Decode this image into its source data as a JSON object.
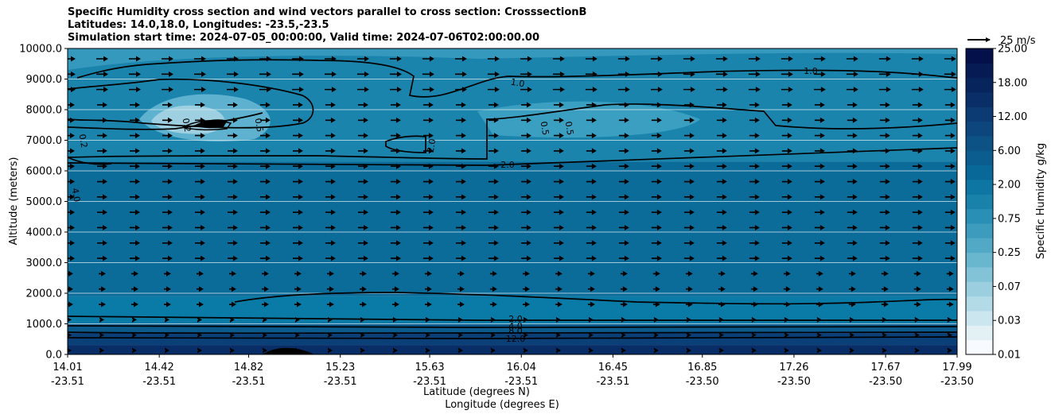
{
  "chart_data": {
    "type": "contourf",
    "title_lines": [
      "Specific Humidity cross section and wind vectors parallel to cross section: CrosssectionB",
      "Latitudes: 14.0,18.0, Longitudes: -23.5,-23.5",
      "Simulation start time: 2024-07-05_00:00:00, Valid time: 2024-07-06T02:00:00.00"
    ],
    "xlabel": "Latitude (degrees N)",
    "xlabel2": "Longitude (degrees E)",
    "ylabel": "Altitude (meters)",
    "x_ticks": [
      {
        "lat": "14.01",
        "lon": "-23.51"
      },
      {
        "lat": "14.42",
        "lon": "-23.51"
      },
      {
        "lat": "14.82",
        "lon": "-23.51"
      },
      {
        "lat": "15.23",
        "lon": "-23.51"
      },
      {
        "lat": "15.63",
        "lon": "-23.51"
      },
      {
        "lat": "16.04",
        "lon": "-23.51"
      },
      {
        "lat": "16.45",
        "lon": "-23.51"
      },
      {
        "lat": "16.85",
        "lon": "-23.50"
      },
      {
        "lat": "17.26",
        "lon": "-23.50"
      },
      {
        "lat": "17.67",
        "lon": "-23.50"
      },
      {
        "lat": "17.99",
        "lon": "-23.50"
      }
    ],
    "y_ticks": [
      "0.0",
      "1000.0",
      "2000.0",
      "3000.0",
      "4000.0",
      "5000.0",
      "6000.0",
      "7000.0",
      "8000.0",
      "9000.0",
      "10000.0"
    ],
    "ylim": [
      0,
      10000
    ],
    "xlim": [
      14.01,
      17.99
    ],
    "colorbar": {
      "label": "Specific Humidity g/kg",
      "ticks": [
        "25.00",
        "18.00",
        "12.00",
        "6.00",
        "2.00",
        "0.75",
        "0.25",
        "0.07",
        "0.03",
        "0.01"
      ],
      "colors": [
        "#f7fbff",
        "#e3f1f4",
        "#cbe6ee",
        "#b3dbe7",
        "#9bcfe0",
        "#82c3d8",
        "#69b6cf",
        "#51a9c6",
        "#3d9cbd",
        "#2a8fb4",
        "#1982ab",
        "#0d76a2",
        "#086998",
        "#0a5d8e",
        "#0c5285",
        "#0d467c",
        "#0c3a72",
        "#0a2f68",
        "#08245d",
        "#061a53",
        "#041049"
      ]
    },
    "quiver_key": {
      "label": "25 m/s"
    },
    "contour_labels": [
      "1.0",
      "1.0",
      "2.0",
      "2.0",
      "2.0",
      "4.0",
      "8.0",
      "12.0",
      "0.5",
      "0.5",
      "0.5",
      "0.2",
      "0.2",
      "4.0"
    ]
  }
}
